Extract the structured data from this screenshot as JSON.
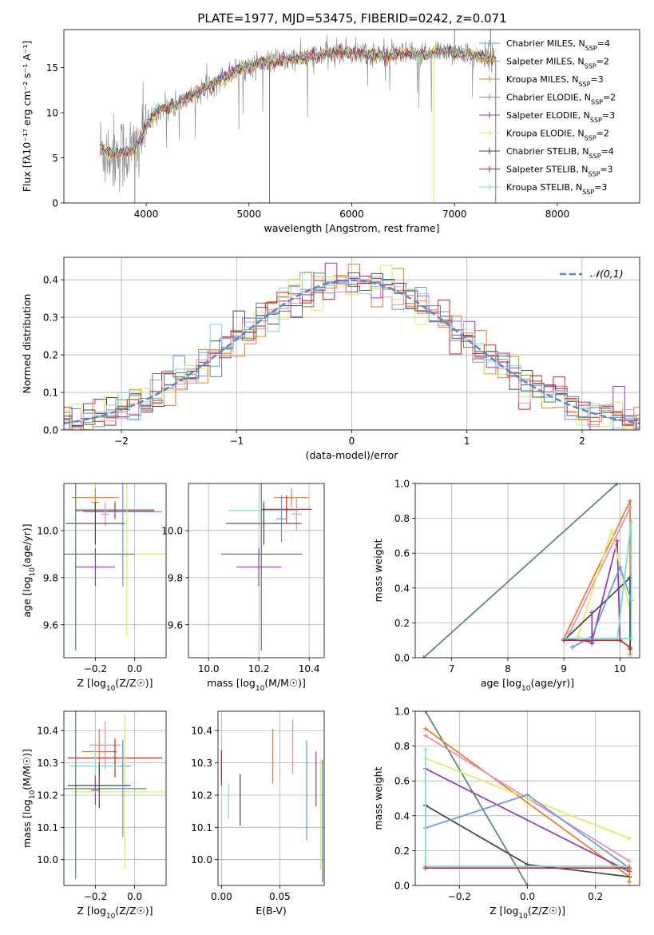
{
  "figure": {
    "title": "PLATE=1977, MJD=53475, FIBERID=0242, z=0.071"
  },
  "colors": {
    "Chabrier MILES": "#6495ed",
    "Salpeter MILES": "#ee7722",
    "Kroupa MILES": "#dd8811",
    "Chabrier ELODIE": "#888888",
    "Salpeter ELODIE": "#9933bb",
    "Kroupa ELODIE": "#ddee55",
    "Chabrier STELIB": "#444444",
    "Salpeter STELIB": "#cc2222",
    "Kroupa STELIB": "#77dddd",
    "pink": "#ee88bb",
    "green": "#558866",
    "normal": "#5588dd"
  },
  "chart_data": [
    {
      "type": "line",
      "id": "spectrum",
      "xlabel": "wavelength [Angstrom, rest frame]",
      "ylabel": "Flux [fλ10⁻¹⁷ erg cm⁻² s⁻¹ A⁻¹]",
      "xlim": [
        3200,
        8800
      ],
      "ylim": [
        0,
        19.2
      ],
      "xticks": [
        "4000",
        "5000",
        "6000",
        "7000",
        "8000"
      ],
      "xtick_values": [
        4000,
        5000,
        6000,
        7000,
        8000
      ],
      "yticks": [
        "0",
        "5",
        "10",
        "15"
      ],
      "ytick_values": [
        0,
        5,
        10,
        15
      ],
      "grid": false,
      "legend_position": "right",
      "legend": [
        {
          "base": "Chabrier MILES, N",
          "sub": "SSP",
          "tail": "=4"
        },
        {
          "base": "Salpeter MILES, N",
          "sub": "SSP",
          "tail": "=2"
        },
        {
          "base": "Kroupa MILES, N",
          "sub": "SSP",
          "tail": "=3"
        },
        {
          "base": "Chabrier ELODIE, N",
          "sub": "SSP",
          "tail": "=2"
        },
        {
          "base": "Salpeter ELODIE, N",
          "sub": "SSP",
          "tail": "=3"
        },
        {
          "base": "Kroupa ELODIE, N",
          "sub": "SSP",
          "tail": "=2"
        },
        {
          "base": "Chabrier STELIB, N",
          "sub": "SSP",
          "tail": "=4"
        },
        {
          "base": "Salpeter STELIB, N",
          "sub": "SSP",
          "tail": "=3"
        },
        {
          "base": "Kroupa STELIB, N",
          "sub": "SSP",
          "tail": "=3"
        }
      ],
      "continuum": {
        "x": [
          3550,
          3700,
          3900,
          4000,
          4100,
          4300,
          4500,
          4700,
          4900,
          5100,
          5300,
          5500,
          5700,
          5900,
          6100,
          6300,
          6500,
          6700,
          6900,
          7100,
          7300,
          7400
        ],
        "y": [
          6.0,
          5.4,
          5.9,
          8.4,
          10.2,
          11.0,
          12.2,
          13.6,
          14.8,
          15.5,
          15.8,
          16.0,
          16.4,
          16.7,
          16.6,
          16.3,
          16.5,
          16.4,
          16.9,
          16.5,
          16.2,
          16.2
        ]
      },
      "spikes": [
        {
          "x": 3890,
          "y": 0
        },
        {
          "x": 5200,
          "y": 0
        },
        {
          "x": 6800,
          "y": 0
        },
        {
          "x": 7400,
          "y": 0
        },
        {
          "x": 7000,
          "y": 19.2
        },
        {
          "x": 7350,
          "y": 19.2
        }
      ]
    },
    {
      "type": "line",
      "id": "residual-histogram",
      "xlabel": "(data-model)/error",
      "ylabel": "Normed distribution",
      "xlim": [
        -2.5,
        2.5
      ],
      "ylim": [
        0,
        0.46
      ],
      "xticks": [
        "−2",
        "−1",
        "0",
        "1",
        "2"
      ],
      "xtick_values": [
        -2,
        -1,
        0,
        1,
        2
      ],
      "yticks": [
        "0.0",
        "0.1",
        "0.2",
        "0.3",
        "0.4"
      ],
      "ytick_values": [
        0,
        0.1,
        0.2,
        0.3,
        0.4
      ],
      "grid": true,
      "legend_position": "top-right",
      "legend_label": "𝒩(0,1)",
      "bin_width": 0.1,
      "hist_range": [
        -2.5,
        2.5
      ]
    },
    {
      "type": "scatter",
      "id": "age-vs-Z",
      "xlabel_prefix": "Z [log",
      "xlabel_sub": "10",
      "xlabel_suffix": "(Z/Z☉)]",
      "ylabel_prefix": "age  [log",
      "ylabel_sub": "10",
      "ylabel_suffix": "(age/yr)]",
      "xlim": [
        -0.36,
        0.16
      ],
      "ylim": [
        9.46,
        10.2
      ],
      "xticks": [
        "−0.2",
        "0.0"
      ],
      "xtick_values": [
        -0.2,
        0.0
      ],
      "yticks": [
        "9.6",
        "9.8",
        "10.0"
      ],
      "ytick_values": [
        9.6,
        9.8,
        10.0
      ],
      "grid": true,
      "points": [
        {
          "c": "Salpeter MILES",
          "x": -0.2,
          "xe": 0.12,
          "y": 10.14,
          "ye": 0.04
        },
        {
          "c": "Kroupa MILES",
          "x": -0.2,
          "xe": 0.02,
          "y": 10.12,
          "ye": 0.03
        },
        {
          "c": "Kroupa STELIB",
          "x": -0.1,
          "xe": 0.2,
          "y": 10.09,
          "ye": 0.04
        },
        {
          "c": "Salpeter STELIB",
          "x": -0.1,
          "xe": 0.2,
          "y": 10.085,
          "ye": 0.035
        },
        {
          "c": "Chabrier MILES",
          "x": -0.06,
          "xe": 0.2,
          "y": 10.08,
          "ye": 0.32
        },
        {
          "c": "pink",
          "x": -0.15,
          "xe": 0.02,
          "y": 10.07,
          "ye": 0.05
        },
        {
          "c": "Chabrier STELIB",
          "x": -0.2,
          "xe": 0.15,
          "y": 10.03,
          "ye": 0.09
        },
        {
          "c": "Kroupa ELODIE",
          "x": -0.04,
          "xe": 0.2,
          "y": 9.9,
          "ye": 0.35
        },
        {
          "c": "green",
          "x": -0.3,
          "xe": 0.3,
          "y": 9.9,
          "ye": 0.41
        },
        {
          "c": "Salpeter ELODIE",
          "x": -0.2,
          "xe": 0.1,
          "y": 9.845,
          "ye": 0.08
        }
      ]
    },
    {
      "type": "scatter",
      "id": "age-vs-mass",
      "xlabel_prefix": "mass [log",
      "xlabel_sub": "10",
      "xlabel_suffix": "(M/M☉)]",
      "xlim": [
        9.92,
        10.46
      ],
      "ylim": [
        9.46,
        10.2
      ],
      "xticks": [
        "10.0",
        "10.2",
        "10.4"
      ],
      "xtick_values": [
        10.0,
        10.2,
        10.4
      ],
      "yticks": [
        "9.6",
        "9.8",
        "10.0"
      ],
      "ytick_values": [
        9.6,
        9.8,
        10.0
      ],
      "grid": true,
      "points": [
        {
          "c": "Salpeter MILES",
          "x": 10.33,
          "xe": 0.07,
          "y": 10.14,
          "ye": 0.04
        },
        {
          "c": "Kroupa STELIB",
          "x": 10.22,
          "xe": 0.14,
          "y": 10.085,
          "ye": 0.045
        },
        {
          "c": "Salpeter STELIB",
          "x": 10.31,
          "xe": 0.1,
          "y": 10.09,
          "ye": 0.06
        },
        {
          "c": "pink",
          "x": 10.35,
          "xe": 0.02,
          "y": 10.07,
          "ye": 0.07
        },
        {
          "c": "Chabrier MILES",
          "x": 10.29,
          "xe": 0.02,
          "y": 10.05,
          "ye": 0.1
        },
        {
          "c": "Chabrier STELIB",
          "x": 10.22,
          "xe": 0.15,
          "y": 10.03,
          "ye": 0.09
        },
        {
          "c": "Kroupa ELODIE",
          "x": 10.21,
          "xe": 0.16,
          "y": 9.9,
          "ye": 0.35
        },
        {
          "c": "green",
          "x": 10.21,
          "xe": 0.16,
          "y": 9.9,
          "ye": 0.41
        },
        {
          "c": "Salpeter ELODIE",
          "x": 10.2,
          "xe": 0.09,
          "y": 9.845,
          "ye": 0.08
        }
      ]
    },
    {
      "type": "line",
      "id": "massweight-vs-age",
      "xlabel_prefix": "age  [log",
      "xlabel_sub": "10",
      "xlabel_suffix": "(age/yr)]",
      "ylabel": "mass weight",
      "xlim": [
        6.35,
        10.35
      ],
      "ylim": [
        0,
        1
      ],
      "xticks": [
        "7",
        "8",
        "9",
        "10"
      ],
      "xtick_values": [
        7,
        8,
        9,
        10
      ],
      "yticks": [
        "0.0",
        "0.2",
        "0.4",
        "0.6",
        "0.8",
        "1.0"
      ],
      "ytick_values": [
        0,
        0.2,
        0.4,
        0.6,
        0.8,
        1.0
      ],
      "grid": true,
      "series": [
        {
          "c": "green",
          "x": [
            6.5,
            9.95
          ],
          "y": [
            0,
            1.0
          ]
        },
        {
          "c": "Salpeter MILES",
          "x": [
            9.0,
            10.18,
            10.18
          ],
          "y": [
            0.11,
            0.9,
            0.02
          ]
        },
        {
          "c": "pink",
          "x": [
            9.1,
            10.18
          ],
          "y": [
            0.14,
            0.86
          ]
        },
        {
          "c": "Salpeter ELODIE",
          "x": [
            9.0,
            9.5,
            9.95,
            10.0
          ],
          "y": [
            0.11,
            0.09,
            0.67,
            0.1
          ]
        },
        {
          "c": "Kroupa ELODIE",
          "x": [
            9.25,
            9.85,
            10.18
          ],
          "y": [
            0.12,
            0.73,
            0.27
          ]
        },
        {
          "c": "Chabrier STELIB",
          "x": [
            9.0,
            10.18,
            10.18
          ],
          "y": [
            0.1,
            0.46,
            0.05
          ]
        },
        {
          "c": "Chabrier MILES",
          "x": [
            9.15,
            9.5,
            10.0,
            10.2
          ],
          "y": [
            0.06,
            0.12,
            0.52,
            0.33
          ]
        },
        {
          "c": "Kroupa STELIB",
          "x": [
            9.0,
            10.2,
            10.2,
            9.95,
            9.95
          ],
          "y": [
            0.11,
            0.11,
            0.78,
            0.1,
            0.1
          ]
        },
        {
          "c": "Salpeter STELIB",
          "x": [
            9.0,
            10.0,
            10.18
          ],
          "y": [
            0.1,
            0.1,
            0.06
          ]
        },
        {
          "c": "Salpeter ELODIE",
          "x": [
            9.5,
            9.5
          ],
          "y": [
            0.08,
            0.26
          ]
        }
      ]
    },
    {
      "type": "scatter",
      "id": "mass-vs-Z",
      "xlabel_prefix": "Z [log",
      "xlabel_sub": "10",
      "xlabel_suffix": "(Z/Z☉)]",
      "ylabel_prefix": "mass [log",
      "ylabel_sub": "10",
      "ylabel_suffix": "(M/M☉)]",
      "xlim": [
        -0.36,
        0.16
      ],
      "ylim": [
        9.92,
        10.46
      ],
      "xticks": [
        "−0.2",
        "0.0"
      ],
      "xtick_values": [
        -0.2,
        0.0
      ],
      "yticks": [
        "10.0",
        "10.1",
        "10.2",
        "10.3",
        "10.4"
      ],
      "ytick_values": [
        10.0,
        10.1,
        10.2,
        10.3,
        10.4
      ],
      "grid": true,
      "points": [
        {
          "c": "pink",
          "x": -0.15,
          "xe": 0.08,
          "y": 10.355,
          "ye": 0.075
        },
        {
          "c": "Salpeter MILES",
          "x": -0.18,
          "xe": 0.09,
          "y": 10.335,
          "ye": 0.07
        },
        {
          "c": "Salpeter STELIB",
          "x": -0.1,
          "xe": 0.24,
          "y": 10.315,
          "ye": 0.06
        },
        {
          "c": "Chabrier MILES",
          "x": -0.06,
          "xe": 0.04,
          "y": 10.29,
          "ye": 0.08
        },
        {
          "c": "Kroupa STELIB",
          "x": -0.2,
          "xe": 0.13,
          "y": 10.29,
          "ye": 0.06
        },
        {
          "c": "Salpeter ELODIE",
          "x": -0.2,
          "xe": 0.02,
          "y": 10.215,
          "ye": 0.045
        },
        {
          "c": "Kroupa ELODIE",
          "x": -0.05,
          "xe": 0.27,
          "y": 10.21,
          "ye": 0.24
        },
        {
          "c": "green",
          "x": -0.3,
          "xe": 0.36,
          "y": 10.22,
          "ye": 0.28
        },
        {
          "c": "Chabrier STELIB",
          "x": -0.18,
          "xe": 0.16,
          "y": 10.23,
          "ye": 0.07
        },
        {
          "c": "Chabrier MILES",
          "x": -0.06,
          "xe": 0.05,
          "y": 10.22,
          "ye": 0.15
        }
      ]
    },
    {
      "type": "scatter",
      "id": "mass-vs-EBV",
      "xlabel": "E(B-V)",
      "xlim": [
        -0.003,
        0.088
      ],
      "ylim": [
        9.92,
        10.46
      ],
      "xticks": [
        "0.00",
        "0.05"
      ],
      "xtick_values": [
        0,
        0.05
      ],
      "yticks": [
        "10.0",
        "10.1",
        "10.2",
        "10.3",
        "10.4"
      ],
      "ytick_values": [
        10.0,
        10.1,
        10.2,
        10.3,
        10.4
      ],
      "grid": true,
      "points": [
        {
          "c": "Salpeter STELIB",
          "x": 0.0,
          "y": 10.285,
          "ye": 0.055
        },
        {
          "c": "Kroupa STELIB",
          "x": 0.006,
          "y": 10.18,
          "ye": 0.055
        },
        {
          "c": "Chabrier STELIB",
          "x": 0.016,
          "y": 10.185,
          "ye": 0.08
        },
        {
          "c": "Salpeter MILES",
          "x": 0.044,
          "y": 10.32,
          "ye": 0.085
        },
        {
          "c": "pink",
          "x": 0.061,
          "y": 10.35,
          "ye": 0.085
        },
        {
          "c": "Chabrier MILES",
          "x": 0.073,
          "y": 10.215,
          "ye": 0.155
        },
        {
          "c": "Salpeter ELODIE",
          "x": 0.081,
          "y": 10.25,
          "ye": 0.085
        },
        {
          "c": "Kroupa ELODIE",
          "x": 0.085,
          "y": 10.14,
          "ye": 0.17
        },
        {
          "c": "green",
          "x": 0.0865,
          "y": 10.12,
          "ye": 0.19
        }
      ]
    },
    {
      "type": "line",
      "id": "massweight-vs-Z",
      "xlabel_prefix": "Z [log",
      "xlabel_sub": "10",
      "xlabel_suffix": "(Z/Z☉)]",
      "ylabel": "mass weight",
      "xlim": [
        -0.33,
        0.33
      ],
      "ylim": [
        0,
        1
      ],
      "xticks": [
        "−0.2",
        "0.0",
        "0.2"
      ],
      "xtick_values": [
        -0.2,
        0.0,
        0.2
      ],
      "yticks": [
        "0.0",
        "0.2",
        "0.4",
        "0.6",
        "0.8",
        "1.0"
      ],
      "ytick_values": [
        0,
        0.2,
        0.4,
        0.6,
        0.8,
        1.0
      ],
      "grid": true,
      "series": [
        {
          "c": "green",
          "x": [
            -0.3,
            0.0
          ],
          "y": [
            1.0,
            0.0
          ]
        },
        {
          "c": "Salpeter MILES",
          "x": [
            -0.3,
            0.3
          ],
          "y": [
            0.9,
            0.05
          ]
        },
        {
          "c": "pink",
          "x": [
            -0.3,
            0.3
          ],
          "y": [
            0.86,
            0.14
          ]
        },
        {
          "c": "Kroupa ELODIE",
          "x": [
            -0.3,
            0.3
          ],
          "y": [
            0.73,
            0.27
          ]
        },
        {
          "c": "Salpeter ELODIE",
          "x": [
            -0.3,
            0.3
          ],
          "y": [
            0.67,
            0.08
          ]
        },
        {
          "c": "Chabrier STELIB",
          "x": [
            -0.3,
            0.0,
            0.3
          ],
          "y": [
            0.46,
            0.12,
            0.05
          ]
        },
        {
          "c": "Chabrier MILES",
          "x": [
            -0.3,
            0.0,
            0.3
          ],
          "y": [
            0.33,
            0.52,
            0.1
          ]
        },
        {
          "c": "Kroupa STELIB",
          "x": [
            -0.3,
            -0.3,
            0.3
          ],
          "y": [
            0.78,
            0.11,
            0.11
          ]
        },
        {
          "c": "Salpeter STELIB",
          "x": [
            -0.3,
            0.3
          ],
          "y": [
            0.1,
            0.1
          ]
        },
        {
          "c": "Salpeter MILES",
          "x": [
            0.3,
            0.3
          ],
          "y": [
            0.02,
            0.09
          ]
        }
      ]
    }
  ]
}
